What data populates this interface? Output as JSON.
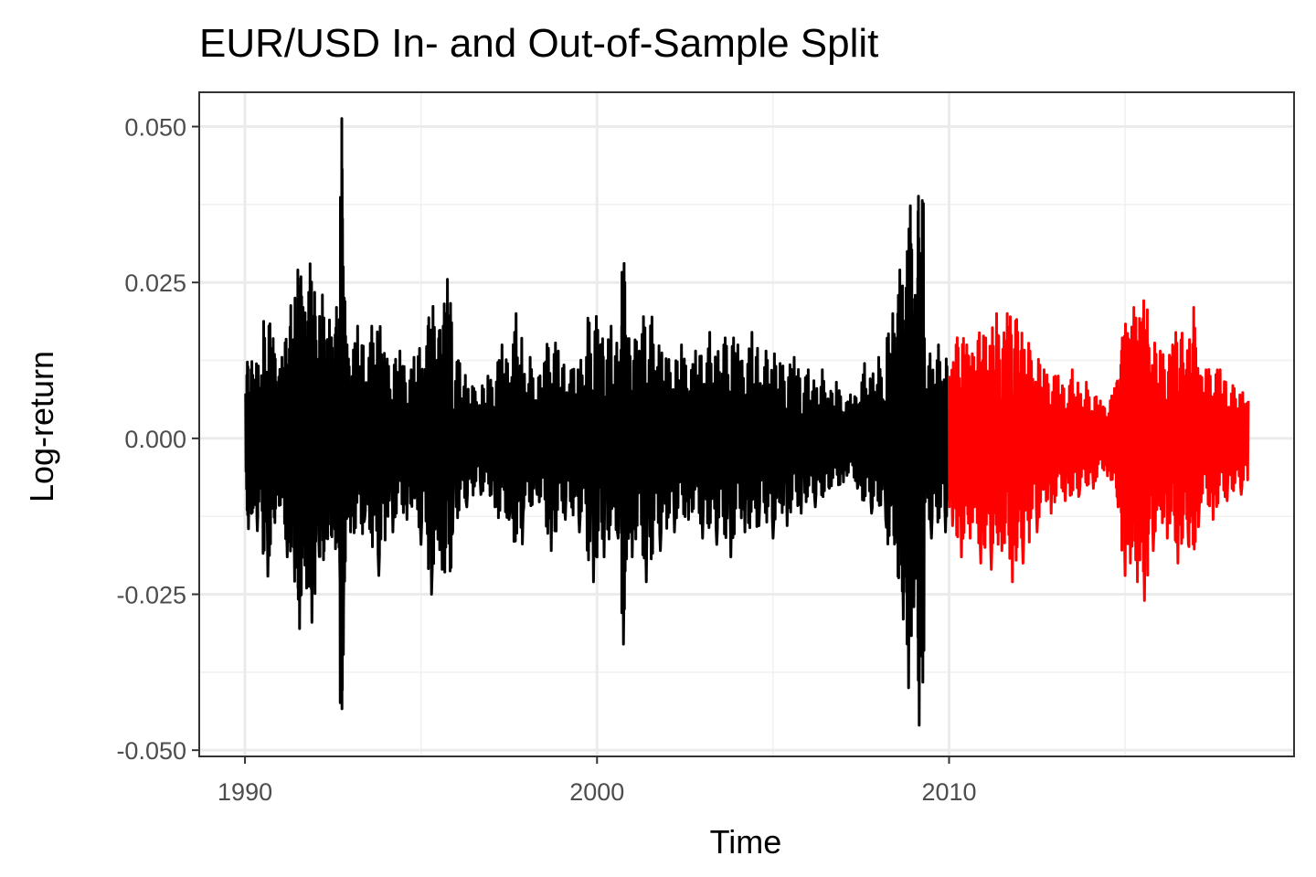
{
  "chart_data": {
    "type": "line",
    "title": "EUR/USD In- and Out-of-Sample Split",
    "xlabel": "Time",
    "ylabel": "Log-return",
    "xlim": [
      1988.7,
      2019.8
    ],
    "ylim": [
      -0.051,
      0.0555
    ],
    "x_ticks": [
      1990,
      2000,
      2010
    ],
    "x_tick_labels": [
      "1990",
      "2000",
      "2010"
    ],
    "y_ticks": [
      -0.05,
      -0.025,
      0.0,
      0.025,
      0.05
    ],
    "y_tick_labels": [
      "-0.050",
      "-0.025",
      "0.000",
      "0.025",
      "0.050"
    ],
    "grid": true,
    "legend": "none",
    "series": [
      {
        "color": "#000000",
        "x_range": [
          1990.0,
          2010.0
        ],
        "points": [
          [
            1990.02,
            0.0072
          ],
          [
            1990.1,
            -0.0145
          ],
          [
            1990.22,
            0.0101
          ],
          [
            1990.35,
            -0.0148
          ],
          [
            1990.5,
            0.0082
          ],
          [
            1990.65,
            -0.0221
          ],
          [
            1990.8,
            0.016
          ],
          [
            1990.9,
            -0.009
          ],
          [
            1991.05,
            0.013
          ],
          [
            1991.2,
            -0.019
          ],
          [
            1991.3,
            0.0213
          ],
          [
            1991.4,
            -0.017
          ],
          [
            1991.5,
            0.027
          ],
          [
            1991.55,
            -0.0305
          ],
          [
            1991.65,
            0.021
          ],
          [
            1991.75,
            -0.024
          ],
          [
            1991.85,
            0.028
          ],
          [
            1991.9,
            -0.0295
          ],
          [
            1992.0,
            0.0195
          ],
          [
            1992.1,
            -0.017
          ],
          [
            1992.2,
            0.023
          ],
          [
            1992.3,
            -0.016
          ],
          [
            1992.4,
            0.019
          ],
          [
            1992.5,
            -0.014
          ],
          [
            1992.6,
            0.021
          ],
          [
            1992.7,
            -0.023
          ],
          [
            1992.75,
            0.0513
          ],
          [
            1992.8,
            -0.027
          ],
          [
            1992.9,
            0.015
          ],
          [
            1993.0,
            -0.015
          ],
          [
            1993.2,
            0.018
          ],
          [
            1993.4,
            -0.013
          ],
          [
            1993.6,
            0.018
          ],
          [
            1993.8,
            -0.022
          ],
          [
            1994.0,
            0.012
          ],
          [
            1994.2,
            -0.015
          ],
          [
            1994.4,
            0.014
          ],
          [
            1994.6,
            -0.013
          ],
          [
            1994.8,
            0.013
          ],
          [
            1995.0,
            -0.017
          ],
          [
            1995.2,
            0.018
          ],
          [
            1995.3,
            -0.025
          ],
          [
            1995.5,
            0.016
          ],
          [
            1995.6,
            -0.021
          ],
          [
            1995.75,
            0.0255
          ],
          [
            1995.9,
            -0.015
          ],
          [
            1996.1,
            0.012
          ],
          [
            1996.3,
            -0.011
          ],
          [
            1996.5,
            0.008
          ],
          [
            1996.7,
            -0.009
          ],
          [
            1996.9,
            0.01
          ],
          [
            1997.1,
            -0.011
          ],
          [
            1997.3,
            0.015
          ],
          [
            1997.5,
            -0.013
          ],
          [
            1997.7,
            0.02
          ],
          [
            1997.9,
            -0.012
          ],
          [
            1998.1,
            0.013
          ],
          [
            1998.3,
            -0.009
          ],
          [
            1998.5,
            0.012
          ],
          [
            1998.7,
            -0.018
          ],
          [
            1998.9,
            0.014
          ],
          [
            1999.1,
            -0.013
          ],
          [
            1999.3,
            0.011
          ],
          [
            1999.5,
            -0.015
          ],
          [
            1999.7,
            0.013
          ],
          [
            1999.9,
            -0.023
          ],
          [
            2000.1,
            0.015
          ],
          [
            2000.2,
            -0.019
          ],
          [
            2000.4,
            0.018
          ],
          [
            2000.6,
            -0.016
          ],
          [
            2000.7,
            0.018
          ],
          [
            2000.75,
            -0.033
          ],
          [
            2000.85,
            0.016
          ],
          [
            2001.0,
            -0.019
          ],
          [
            2001.2,
            0.014
          ],
          [
            2001.4,
            -0.023
          ],
          [
            2001.6,
            0.015
          ],
          [
            2001.8,
            -0.018
          ],
          [
            2002.0,
            0.012
          ],
          [
            2002.2,
            -0.015
          ],
          [
            2002.4,
            0.015
          ],
          [
            2002.6,
            -0.013
          ],
          [
            2002.8,
            0.014
          ],
          [
            2003.0,
            -0.016
          ],
          [
            2003.2,
            0.017
          ],
          [
            2003.4,
            -0.017
          ],
          [
            2003.6,
            0.015
          ],
          [
            2003.8,
            -0.019
          ],
          [
            2004.0,
            0.015
          ],
          [
            2004.2,
            -0.015
          ],
          [
            2004.4,
            0.017
          ],
          [
            2004.6,
            -0.014
          ],
          [
            2004.8,
            0.014
          ],
          [
            2005.0,
            -0.016
          ],
          [
            2005.2,
            0.012
          ],
          [
            2005.4,
            -0.014
          ],
          [
            2005.6,
            0.013
          ],
          [
            2005.8,
            -0.012
          ],
          [
            2006.0,
            0.011
          ],
          [
            2006.2,
            -0.011
          ],
          [
            2006.4,
            0.011
          ],
          [
            2006.6,
            -0.008
          ],
          [
            2006.8,
            0.009
          ],
          [
            2007.0,
            -0.007
          ],
          [
            2007.2,
            0.007
          ],
          [
            2007.4,
            -0.008
          ],
          [
            2007.6,
            0.012
          ],
          [
            2007.8,
            -0.012
          ],
          [
            2008.0,
            0.013
          ],
          [
            2008.2,
            -0.013
          ],
          [
            2008.4,
            0.02
          ],
          [
            2008.5,
            -0.016
          ],
          [
            2008.6,
            0.027
          ],
          [
            2008.7,
            -0.029
          ],
          [
            2008.8,
            0.023
          ],
          [
            2008.85,
            -0.04
          ],
          [
            2008.9,
            0.0373
          ],
          [
            2009.0,
            -0.027
          ],
          [
            2009.1,
            0.02
          ],
          [
            2009.15,
            -0.046
          ],
          [
            2009.3,
            0.016
          ],
          [
            2009.5,
            -0.016
          ],
          [
            2009.7,
            0.015
          ],
          [
            2009.9,
            -0.015
          ],
          [
            2010.0,
            0.01
          ]
        ]
      },
      {
        "color": "#ff0000",
        "x_range": [
          2010.0,
          2018.5
        ],
        "points": [
          [
            2010.0,
            0.01
          ],
          [
            2010.1,
            -0.014
          ],
          [
            2010.2,
            0.015
          ],
          [
            2010.35,
            -0.019
          ],
          [
            2010.5,
            0.015
          ],
          [
            2010.6,
            -0.016
          ],
          [
            2010.7,
            0.013
          ],
          [
            2010.9,
            -0.02
          ],
          [
            2011.0,
            0.015
          ],
          [
            2011.2,
            -0.021
          ],
          [
            2011.35,
            0.02
          ],
          [
            2011.5,
            -0.018
          ],
          [
            2011.65,
            0.02
          ],
          [
            2011.8,
            -0.023
          ],
          [
            2011.95,
            0.017
          ],
          [
            2012.1,
            -0.02
          ],
          [
            2012.3,
            0.014
          ],
          [
            2012.5,
            -0.015
          ],
          [
            2012.7,
            0.011
          ],
          [
            2012.9,
            -0.012
          ],
          [
            2013.1,
            0.01
          ],
          [
            2013.3,
            -0.01
          ],
          [
            2013.5,
            0.011
          ],
          [
            2013.7,
            -0.009
          ],
          [
            2013.9,
            0.009
          ],
          [
            2014.1,
            -0.008
          ],
          [
            2014.3,
            0.006
          ],
          [
            2014.5,
            -0.006
          ],
          [
            2014.7,
            0.008
          ],
          [
            2014.8,
            -0.011
          ],
          [
            2014.9,
            0.014
          ],
          [
            2015.0,
            -0.022
          ],
          [
            2015.05,
            0.016
          ],
          [
            2015.15,
            -0.02
          ],
          [
            2015.25,
            0.021
          ],
          [
            2015.35,
            -0.023
          ],
          [
            2015.45,
            0.018
          ],
          [
            2015.55,
            -0.026
          ],
          [
            2015.65,
            0.015
          ],
          [
            2015.8,
            -0.018
          ],
          [
            2016.0,
            0.014
          ],
          [
            2016.2,
            -0.016
          ],
          [
            2016.35,
            0.015
          ],
          [
            2016.5,
            -0.02
          ],
          [
            2016.65,
            0.012
          ],
          [
            2016.8,
            -0.017
          ],
          [
            2016.95,
            0.021
          ],
          [
            2017.1,
            -0.012
          ],
          [
            2017.3,
            0.011
          ],
          [
            2017.5,
            -0.013
          ],
          [
            2017.7,
            0.011
          ],
          [
            2017.9,
            -0.01
          ],
          [
            2018.1,
            0.008
          ],
          [
            2018.3,
            -0.009
          ],
          [
            2018.5,
            0.006
          ]
        ]
      }
    ]
  }
}
